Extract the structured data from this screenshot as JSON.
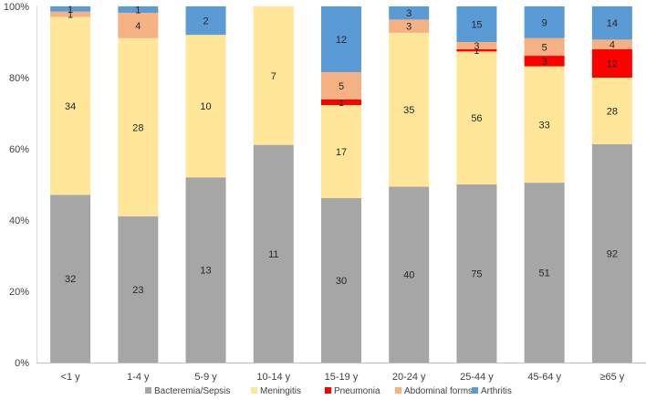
{
  "chart_data": {
    "type": "bar",
    "stacked": true,
    "normalized": true,
    "categories": [
      "<1 y",
      "1-4 y",
      "5-9 y",
      "10-14 y",
      "15-19 y",
      "20-24 y",
      "25-44 y",
      "45-64 y",
      "≥65 y"
    ],
    "series": [
      {
        "name": "Bacteremia/Sepsis",
        "color": "#a6a6a6",
        "values": [
          32,
          23,
          13,
          11,
          30,
          40,
          75,
          51,
          92
        ]
      },
      {
        "name": "Meningitis",
        "color": "#ffe699",
        "values": [
          34,
          28,
          10,
          7,
          17,
          35,
          56,
          33,
          28
        ]
      },
      {
        "name": "Pneumonia",
        "color": "#ff0000",
        "values": [
          0,
          0,
          0,
          0,
          1,
          0,
          1,
          3,
          12
        ]
      },
      {
        "name": "Abdominal forms",
        "color": "#f4b183",
        "values": [
          1,
          4,
          0,
          0,
          5,
          3,
          3,
          5,
          4
        ]
      },
      {
        "name": "Arthritis",
        "color": "#5b9bd5",
        "values": [
          1,
          1,
          2,
          0,
          12,
          3,
          15,
          9,
          14
        ]
      }
    ],
    "yticks": [
      "0%",
      "20%",
      "40%",
      "60%",
      "80%",
      "100%"
    ],
    "ylim": [
      0,
      100
    ],
    "grid": false,
    "legend": "bottom"
  }
}
